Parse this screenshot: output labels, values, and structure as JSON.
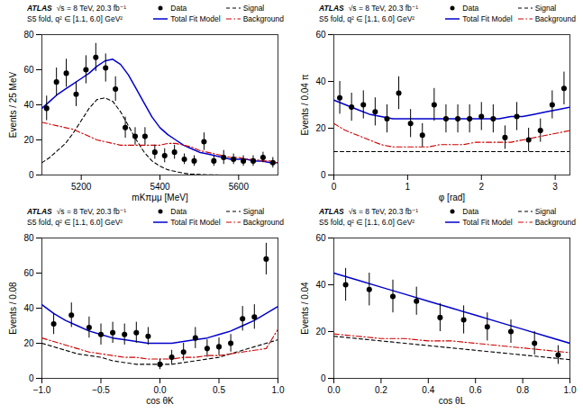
{
  "chart_data": [
    {
      "type": "line",
      "xlabel": "mKπμμ [MeV]",
      "ylabel": "Events / 25 MeV",
      "xlim": [
        5100,
        5700
      ],
      "ylim": [
        0,
        80
      ],
      "xticks": [
        5200,
        5400,
        5600
      ],
      "yticks": [
        0,
        20,
        40,
        60,
        80
      ],
      "annotations": [
        "ATLAS",
        "√s = 8 TeV, 20.3 fb⁻¹",
        "S5 fold, q² ∈ [1.1, 6.0] GeV²"
      ],
      "legend": "upper right",
      "series": [
        {
          "name": "Data",
          "type": "scatter",
          "marker": "o",
          "color": "#000000",
          "x": [
            5112,
            5137,
            5162,
            5187,
            5212,
            5237,
            5262,
            5287,
            5312,
            5337,
            5362,
            5387,
            5412,
            5437,
            5462,
            5487,
            5512,
            5537,
            5562,
            5587,
            5612,
            5637,
            5662,
            5687
          ],
          "values": [
            38,
            53,
            58,
            46,
            60,
            67,
            61,
            49,
            27,
            22,
            22,
            13,
            11,
            13,
            9,
            8,
            19,
            8,
            10,
            9,
            8,
            8,
            10,
            7
          ],
          "yerr": [
            7,
            8,
            8,
            7,
            8,
            8,
            8,
            7,
            6,
            5,
            5,
            4,
            4,
            4,
            3,
            3,
            5,
            3,
            4,
            3,
            3,
            3,
            3,
            3
          ]
        },
        {
          "name": "Total Fit Model",
          "type": "line",
          "line_style": "solid",
          "color": "#0000cc",
          "x": [
            5100,
            5120,
            5140,
            5160,
            5180,
            5200,
            5220,
            5240,
            5260,
            5280,
            5300,
            5320,
            5340,
            5360,
            5380,
            5400,
            5420,
            5440,
            5460,
            5480,
            5500,
            5520,
            5540,
            5560,
            5580,
            5600,
            5620,
            5640,
            5660,
            5680,
            5700
          ],
          "values": [
            38,
            42,
            46,
            49,
            52,
            55,
            58,
            62,
            65,
            66,
            63,
            57,
            49,
            41,
            33,
            27,
            23,
            20,
            17,
            15,
            13,
            12,
            11,
            10,
            9,
            9,
            9,
            8,
            8,
            7,
            7
          ]
        },
        {
          "name": "Signal",
          "type": "line",
          "line_style": "dashed",
          "color": "#000000",
          "x": [
            5100,
            5120,
            5140,
            5160,
            5180,
            5200,
            5220,
            5240,
            5260,
            5280,
            5300,
            5320,
            5340,
            5360,
            5380,
            5400,
            5420,
            5440,
            5460,
            5480,
            5500,
            5520,
            5540,
            5560,
            5580,
            5600,
            5620,
            5640,
            5660,
            5680,
            5700
          ],
          "values": [
            7,
            10,
            14,
            18,
            24,
            31,
            38,
            43,
            44,
            42,
            36,
            28,
            20,
            13,
            8,
            5,
            3,
            2,
            1,
            0.5,
            0.3,
            0.1,
            0.05,
            0.02,
            0.01,
            0,
            0,
            0,
            0,
            0,
            0
          ]
        },
        {
          "name": "Background",
          "type": "line",
          "line_style": "dashdot",
          "color": "#cc0000",
          "x": [
            5100,
            5120,
            5140,
            5160,
            5180,
            5200,
            5220,
            5240,
            5260,
            5280,
            5300,
            5320,
            5340,
            5360,
            5380,
            5400,
            5420,
            5440,
            5460,
            5480,
            5500,
            5520,
            5540,
            5560,
            5580,
            5600,
            5620,
            5640,
            5660,
            5680,
            5700
          ],
          "values": [
            30,
            29,
            28,
            27,
            26,
            24,
            22,
            20,
            19,
            18,
            17,
            17,
            17,
            17,
            17,
            17,
            18,
            18,
            17,
            16,
            14,
            13,
            12,
            11,
            10,
            10,
            9,
            9,
            8,
            8,
            7
          ]
        }
      ]
    },
    {
      "type": "line",
      "xlabel": "φ [rad]",
      "ylabel": "Events / 0.04 π",
      "xlim": [
        0,
        3.2
      ],
      "ylim": [
        0,
        60
      ],
      "xticks": [
        0,
        1,
        2,
        3
      ],
      "yticks": [
        0,
        20,
        40,
        60
      ],
      "annotations": [
        "ATLAS",
        "√s = 8 TeV, 20.3 fb⁻¹",
        "S5 fold, q² ∈ [1.1, 6.0] GeV²"
      ],
      "legend": "upper right",
      "series": [
        {
          "name": "Data",
          "type": "scatter",
          "marker": "o",
          "color": "#000000",
          "x": [
            0.08,
            0.24,
            0.4,
            0.56,
            0.72,
            0.88,
            1.04,
            1.2,
            1.36,
            1.52,
            1.68,
            1.84,
            2.0,
            2.16,
            2.32,
            2.48,
            2.64,
            2.8,
            2.96,
            3.12
          ],
          "values": [
            33,
            29,
            30,
            27,
            24,
            35,
            22,
            17,
            30,
            24,
            24,
            24,
            25,
            24,
            16,
            25,
            15,
            19,
            30,
            37
          ],
          "yerr": [
            7,
            6,
            6,
            6,
            6,
            7,
            6,
            5,
            7,
            6,
            6,
            6,
            6,
            6,
            5,
            6,
            5,
            5,
            6,
            7
          ]
        },
        {
          "name": "Total Fit Model",
          "type": "line",
          "line_style": "solid",
          "color": "#0000cc",
          "x": [
            0,
            0.16,
            0.32,
            0.48,
            0.64,
            0.8,
            0.96,
            1.12,
            1.28,
            1.44,
            1.6,
            1.76,
            1.92,
            2.08,
            2.24,
            2.4,
            2.56,
            2.72,
            2.88,
            3.04,
            3.2
          ],
          "values": [
            32,
            30,
            28,
            26,
            25,
            24,
            24,
            24,
            24,
            24,
            24,
            24,
            24,
            24,
            24,
            25,
            25,
            26,
            27,
            28,
            29
          ]
        },
        {
          "name": "Signal",
          "type": "line",
          "line_style": "dashed",
          "color": "#000000",
          "x": [
            0,
            0.16,
            0.32,
            0.48,
            0.64,
            0.8,
            0.96,
            1.12,
            1.28,
            1.44,
            1.6,
            1.76,
            1.92,
            2.08,
            2.24,
            2.4,
            2.56,
            2.72,
            2.88,
            3.04,
            3.2
          ],
          "values": [
            10,
            10,
            10,
            10,
            10,
            10,
            10,
            10,
            10,
            10,
            10,
            10,
            10,
            10,
            10,
            10,
            10,
            10,
            10,
            10,
            10
          ]
        },
        {
          "name": "Background",
          "type": "line",
          "line_style": "dashdot",
          "color": "#cc0000",
          "x": [
            0,
            0.16,
            0.32,
            0.48,
            0.64,
            0.8,
            0.96,
            1.12,
            1.28,
            1.44,
            1.6,
            1.76,
            1.92,
            2.08,
            2.24,
            2.4,
            2.56,
            2.72,
            2.88,
            3.04,
            3.2
          ],
          "values": [
            22,
            19,
            17,
            15,
            13,
            12,
            12,
            12,
            12,
            13,
            13,
            13,
            14,
            14,
            14,
            14,
            15,
            16,
            17,
            18,
            19
          ]
        }
      ]
    },
    {
      "type": "line",
      "xlabel": "cos θK",
      "ylabel": "Events / 0.08",
      "xlim": [
        -1,
        1
      ],
      "ylim": [
        0,
        80
      ],
      "xticks": [
        {
          "value": -1,
          "label": "−1.0"
        },
        {
          "value": -0.5,
          "label": "−0.5"
        },
        {
          "value": 0,
          "label": "0.0"
        },
        0.5,
        {
          "value": 1,
          "label": "1.0"
        }
      ],
      "yticks": [
        0,
        20,
        40,
        60,
        80
      ],
      "annotations": [
        "ATLAS",
        "√s = 8 TeV, 20.3 fb⁻¹",
        "S5 fold, q² ∈ [1.1, 6.0] GeV²"
      ],
      "legend": "upper right",
      "series": [
        {
          "name": "Data",
          "type": "scatter",
          "marker": "o",
          "color": "#000000",
          "x": [
            -0.9,
            -0.75,
            -0.6,
            -0.5,
            -0.4,
            -0.3,
            -0.2,
            -0.1,
            0.0,
            0.1,
            0.2,
            0.3,
            0.4,
            0.5,
            0.6,
            0.7,
            0.8,
            0.9
          ],
          "values": [
            31,
            36,
            29,
            25,
            26,
            25,
            26,
            24,
            8,
            12,
            15,
            23,
            17,
            18,
            20,
            34,
            35,
            68
          ],
          "yerr": [
            6,
            7,
            6,
            6,
            6,
            6,
            6,
            5,
            3,
            4,
            5,
            6,
            5,
            5,
            5,
            7,
            7,
            9
          ]
        },
        {
          "name": "Total Fit Model",
          "type": "line",
          "line_style": "solid",
          "color": "#0000cc",
          "x": [
            -1.0,
            -0.9,
            -0.8,
            -0.7,
            -0.6,
            -0.5,
            -0.4,
            -0.3,
            -0.2,
            -0.1,
            0.0,
            0.1,
            0.2,
            0.3,
            0.4,
            0.5,
            0.6,
            0.7,
            0.8,
            0.9,
            1.0
          ],
          "values": [
            42,
            37,
            33,
            30,
            27,
            25,
            23,
            22,
            21,
            20,
            20,
            20,
            21,
            22,
            23,
            25,
            27,
            30,
            33,
            37,
            41
          ]
        },
        {
          "name": "Signal",
          "type": "line",
          "line_style": "dashed",
          "color": "#000000",
          "x": [
            -1.0,
            -0.9,
            -0.8,
            -0.7,
            -0.6,
            -0.5,
            -0.4,
            -0.3,
            -0.2,
            -0.1,
            0.0,
            0.1,
            0.2,
            0.3,
            0.4,
            0.5,
            0.6,
            0.7,
            0.8,
            0.9,
            1.0
          ],
          "values": [
            20,
            18,
            16,
            14,
            13,
            12,
            10,
            9,
            8,
            8,
            8,
            8,
            9,
            10,
            11,
            12,
            14,
            16,
            18,
            20,
            22
          ]
        },
        {
          "name": "Background",
          "type": "line",
          "line_style": "dashdot",
          "color": "#cc0000",
          "x": [
            -1.0,
            -0.9,
            -0.8,
            -0.7,
            -0.6,
            -0.5,
            -0.4,
            -0.3,
            -0.2,
            -0.1,
            0.0,
            0.1,
            0.2,
            0.3,
            0.4,
            0.5,
            0.6,
            0.7,
            0.8,
            0.9,
            1.0
          ],
          "values": [
            23,
            21,
            19,
            17,
            15,
            14,
            13,
            12,
            12,
            11,
            11,
            11,
            12,
            12,
            13,
            13,
            14,
            15,
            16,
            17,
            28
          ]
        }
      ]
    },
    {
      "type": "line",
      "xlabel": "cos θL",
      "ylabel": "Events / 0.04",
      "xlim": [
        0,
        1
      ],
      "ylim": [
        0,
        60
      ],
      "xticks": [
        {
          "value": 0,
          "label": "0.0"
        },
        0.2,
        0.4,
        0.6,
        0.8,
        {
          "value": 1,
          "label": "1.0"
        }
      ],
      "yticks": [
        0,
        20,
        40,
        60
      ],
      "annotations": [
        "ATLAS",
        "√s = 8 TeV, 20.3 fb⁻¹",
        "S5 fold, q² ∈ [1.1, 6.0] GeV²"
      ],
      "legend": "upper right",
      "series": [
        {
          "name": "Data",
          "type": "scatter",
          "marker": "o",
          "color": "#000000",
          "x": [
            0.05,
            0.15,
            0.25,
            0.35,
            0.45,
            0.55,
            0.65,
            0.75,
            0.85,
            0.95
          ],
          "values": [
            40,
            38,
            35,
            33,
            26,
            25,
            22,
            20,
            15,
            10
          ],
          "yerr": [
            7,
            7,
            7,
            6,
            6,
            6,
            6,
            5,
            5,
            4
          ]
        },
        {
          "name": "Total Fit Model",
          "type": "line",
          "line_style": "solid",
          "color": "#0000cc",
          "x": [
            0.0,
            0.1,
            0.2,
            0.3,
            0.4,
            0.5,
            0.6,
            0.7,
            0.8,
            0.9,
            1.0
          ],
          "values": [
            45,
            42,
            39,
            36,
            33,
            30,
            27,
            24,
            21,
            18,
            15
          ]
        },
        {
          "name": "Signal",
          "type": "line",
          "line_style": "dashed",
          "color": "#000000",
          "x": [
            0.0,
            0.1,
            0.2,
            0.3,
            0.4,
            0.5,
            0.6,
            0.7,
            0.8,
            0.9,
            1.0
          ],
          "values": [
            18,
            17,
            16,
            15,
            14,
            13,
            12,
            11,
            10,
            9,
            8
          ]
        },
        {
          "name": "Background",
          "type": "line",
          "line_style": "dashdot",
          "color": "#cc0000",
          "x": [
            0.0,
            0.1,
            0.2,
            0.3,
            0.4,
            0.5,
            0.6,
            0.7,
            0.8,
            0.9,
            1.0
          ],
          "values": [
            19,
            18,
            17,
            17,
            16,
            16,
            15,
            14,
            13,
            12,
            11
          ]
        }
      ]
    }
  ]
}
